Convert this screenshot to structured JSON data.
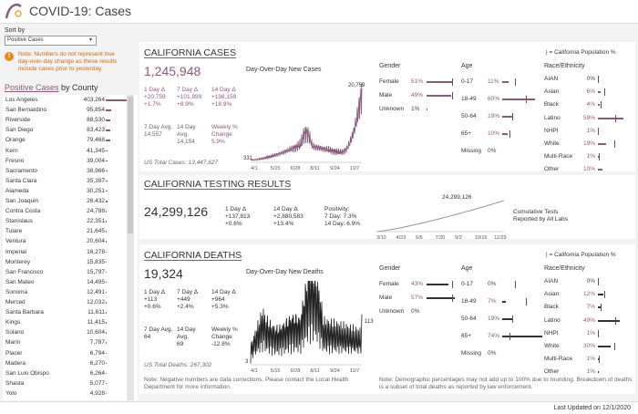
{
  "app": {
    "title": "COVID-19: Cases",
    "logo_text": "CA GOV"
  },
  "sort": {
    "label": "Sort by",
    "value": "Positive Cases"
  },
  "note": "Note: Numbers do not represent true day-over-day change as these results include cases prior to yesterday.",
  "counties": {
    "title_a": "Positive Cases",
    "title_b": " by County",
    "items": [
      {
        "name": "Los Angeles",
        "value": "403,264",
        "frac": 1.0
      },
      {
        "name": "San Bernardino",
        "value": "95,854",
        "frac": 0.24
      },
      {
        "name": "Riverside",
        "value": "88,530",
        "frac": 0.22
      },
      {
        "name": "San Diego",
        "value": "83,423",
        "frac": 0.21
      },
      {
        "name": "Orange",
        "value": "79,468",
        "frac": 0.2
      },
      {
        "name": "Kern",
        "value": "41,345",
        "frac": 0.1
      },
      {
        "name": "Fresno",
        "value": "39,004",
        "frac": 0.1
      },
      {
        "name": "Sacramento",
        "value": "38,966",
        "frac": 0.1
      },
      {
        "name": "Santa Clara",
        "value": "35,397",
        "frac": 0.09
      },
      {
        "name": "Alameda",
        "value": "30,251",
        "frac": 0.08
      },
      {
        "name": "San Joaquin",
        "value": "26,432",
        "frac": 0.07
      },
      {
        "name": "Contra Costa",
        "value": "24,788",
        "frac": 0.06
      },
      {
        "name": "Stanislaus",
        "value": "22,351",
        "frac": 0.06
      },
      {
        "name": "Tulare",
        "value": "21,645",
        "frac": 0.05
      },
      {
        "name": "Ventura",
        "value": "20,604",
        "frac": 0.05
      },
      {
        "name": "Imperial",
        "value": "16,278",
        "frac": 0.04
      },
      {
        "name": "Monterey",
        "value": "15,835",
        "frac": 0.04
      },
      {
        "name": "San Francisco",
        "value": "15,797",
        "frac": 0.04
      },
      {
        "name": "San Mateo",
        "value": "14,495",
        "frac": 0.04
      },
      {
        "name": "Sonoma",
        "value": "12,491",
        "frac": 0.03
      },
      {
        "name": "Merced",
        "value": "12,032",
        "frac": 0.03
      },
      {
        "name": "Santa Barbara",
        "value": "11,611",
        "frac": 0.03
      },
      {
        "name": "Kings",
        "value": "11,415",
        "frac": 0.03
      },
      {
        "name": "Solano",
        "value": "10,604",
        "frac": 0.03
      },
      {
        "name": "Marin",
        "value": "7,787",
        "frac": 0.02
      },
      {
        "name": "Placer",
        "value": "6,794",
        "frac": 0.02
      },
      {
        "name": "Madera",
        "value": "6,270",
        "frac": 0.02
      },
      {
        "name": "San Luis Obispo",
        "value": "6,264",
        "frac": 0.02
      },
      {
        "name": "Shasta",
        "value": "5,077",
        "frac": 0.01
      },
      {
        "name": "Yolo",
        "value": "4,928",
        "frac": 0.01
      }
    ]
  },
  "cases": {
    "title": "CALIFORNIA CASES",
    "total": "1,245,948",
    "chart_title": "Day-Over-Day New Cases",
    "d1_label": "1 Day Δ",
    "d1_a": "+20,759",
    "d1_b": "+1.7%",
    "d7_label": "7 Day Δ",
    "d7_a": "+101,899",
    "d7_b": "+8.9%",
    "d14_label": "14 Day Δ",
    "d14_a": "+198,159",
    "d14_b": "+18.9%",
    "avg7_label": "7 Day Avg.",
    "avg7": "14,557",
    "avg14_label": "14 Day Avg.",
    "avg14": "14,154",
    "wk_label": "Weekly % Change",
    "wk": "5.9%",
    "us_total": "US Total Cases: 13,447,627",
    "max_label": "20,759",
    "min_label": "331",
    "x_ticks": [
      "4/1",
      "5/15",
      "6/28",
      "8/11",
      "9/24",
      "11/7"
    ]
  },
  "testing": {
    "title": "CALIFORNIA TESTING RESULTS",
    "total": "24,299,126",
    "d1_label": "1 Day Δ",
    "d1_a": "+137,813",
    "d1_b": "+0.6%",
    "d14_label": "14 Day Δ",
    "d14_a": "+2,880,583",
    "d14_b": "+13.4%",
    "pos_label": "Positivity:",
    "pos7": "7 Day: 7.3%",
    "pos14": "14 Day: 6.9%",
    "max_label": "24,299,126",
    "caption_a": "Cumulative Tests",
    "caption_b": "Reported by All Labs",
    "x_ticks": [
      "3/10",
      "4/23",
      "6/6",
      "7/20",
      "9/2",
      "10/16",
      "11/29"
    ]
  },
  "deaths": {
    "title": "CALIFORNIA DEATHS",
    "total": "19,324",
    "chart_title": "Day-Over-Day New Deaths",
    "d1_label": "1 Day Δ",
    "d1_a": "+113",
    "d1_b": "+0.6%",
    "d7_label": "7 Day Δ",
    "d7_a": "+449",
    "d7_b": "+2.4%",
    "d14_label": "14 Day Δ",
    "d14_a": "+964",
    "d14_b": "+5.3%",
    "avg7_label": "7 Day Avg.",
    "avg7": "64",
    "avg14_label": "14 Day Avg.",
    "avg14": "69",
    "wk_label": "Weekly % Change",
    "wk": "-12.8%",
    "us_total": "US Total Deaths: 267,302",
    "min_label": "3",
    "last_label": "113",
    "x_ticks": [
      "4/1",
      "5/15",
      "6/28",
      "8/11",
      "9/24",
      "11/7"
    ]
  },
  "legend": "| = California Population %",
  "demo_cases": {
    "gender_title": "Gender",
    "age_title": "Age",
    "race_title": "Race/Ethnicity",
    "gender": [
      {
        "label": "Female",
        "pct": "51%",
        "v": 51,
        "pop": 50
      },
      {
        "label": "Male",
        "pct": "49%",
        "v": 49,
        "pop": 50
      },
      {
        "label": "Unknown",
        "pct": "1%",
        "v": 1,
        "pop": null
      }
    ],
    "age": [
      {
        "label": "0-17",
        "pct": "11%",
        "v": 11,
        "pop": 23
      },
      {
        "label": "18-49",
        "pct": "60%",
        "v": 60,
        "pop": 44
      },
      {
        "label": "50-64",
        "pct": "19%",
        "v": 19,
        "pop": 19
      },
      {
        "label": "65+",
        "pct": "10%",
        "v": 10,
        "pop": 14
      },
      {
        "label": "Missing",
        "pct": "0%",
        "v": 0,
        "pop": null
      }
    ],
    "race": [
      {
        "label": "AIAN",
        "pct": "0%",
        "v": 0,
        "pop": 1
      },
      {
        "label": "Asian",
        "pct": "6%",
        "v": 6,
        "pop": 15
      },
      {
        "label": "Black",
        "pct": "4%",
        "v": 4,
        "pop": 6
      },
      {
        "label": "Latino",
        "pct": "59%",
        "v": 59,
        "pop": 39
      },
      {
        "label": "NHPI",
        "pct": "1%",
        "v": 1,
        "pop": 0
      },
      {
        "label": "White",
        "pct": "19%",
        "v": 19,
        "pop": 37
      },
      {
        "label": "Multi-Race",
        "pct": "1%",
        "v": 1,
        "pop": 2
      },
      {
        "label": "Other",
        "pct": "10%",
        "v": 10,
        "pop": null
      }
    ]
  },
  "demo_deaths": {
    "gender_title": "Gender",
    "age_title": "Age",
    "race_title": "Race/Ethnicity",
    "gender": [
      {
        "label": "Female",
        "pct": "43%",
        "v": 43,
        "pop": 50
      },
      {
        "label": "Male",
        "pct": "57%",
        "v": 57,
        "pop": 50
      },
      {
        "label": "Unknown",
        "pct": "0%",
        "v": 0,
        "pop": null
      }
    ],
    "age": [
      {
        "label": "0-17",
        "pct": "0%",
        "v": 0,
        "pop": 23
      },
      {
        "label": "18-49",
        "pct": "7%",
        "v": 7,
        "pop": 44
      },
      {
        "label": "50-64",
        "pct": "19%",
        "v": 19,
        "pop": 19
      },
      {
        "label": "65+",
        "pct": "74%",
        "v": 74,
        "pop": 14
      },
      {
        "label": "Missing",
        "pct": "0%",
        "v": 0,
        "pop": null
      }
    ],
    "race": [
      {
        "label": "AIAN",
        "pct": "0%",
        "v": 0,
        "pop": 1
      },
      {
        "label": "Asian",
        "pct": "12%",
        "v": 12,
        "pop": 15
      },
      {
        "label": "Black",
        "pct": "7%",
        "v": 7,
        "pop": 6
      },
      {
        "label": "Latino",
        "pct": "49%",
        "v": 49,
        "pop": 39
      },
      {
        "label": "NHPI",
        "pct": "1%",
        "v": 1,
        "pop": 0
      },
      {
        "label": "White",
        "pct": "30%",
        "v": 30,
        "pop": 37
      },
      {
        "label": "Multi-Race",
        "pct": "1%",
        "v": 1,
        "pop": 2
      },
      {
        "label": "Other",
        "pct": "1%",
        "v": 1,
        "pop": null
      }
    ]
  },
  "deaths_note": "Note: Negative numbers are data corrections. Please contact the Local Health Department for more information.",
  "demo_note": "Note: Demographic percentages may not add up to 100% due to rounding. Breakdown of deaths is a subset of total deaths as reported by law enforcement.",
  "footer": "Last Updated on 12/1/2020",
  "colors": {
    "accent": "#8a5a7d",
    "dark": "#333333"
  }
}
